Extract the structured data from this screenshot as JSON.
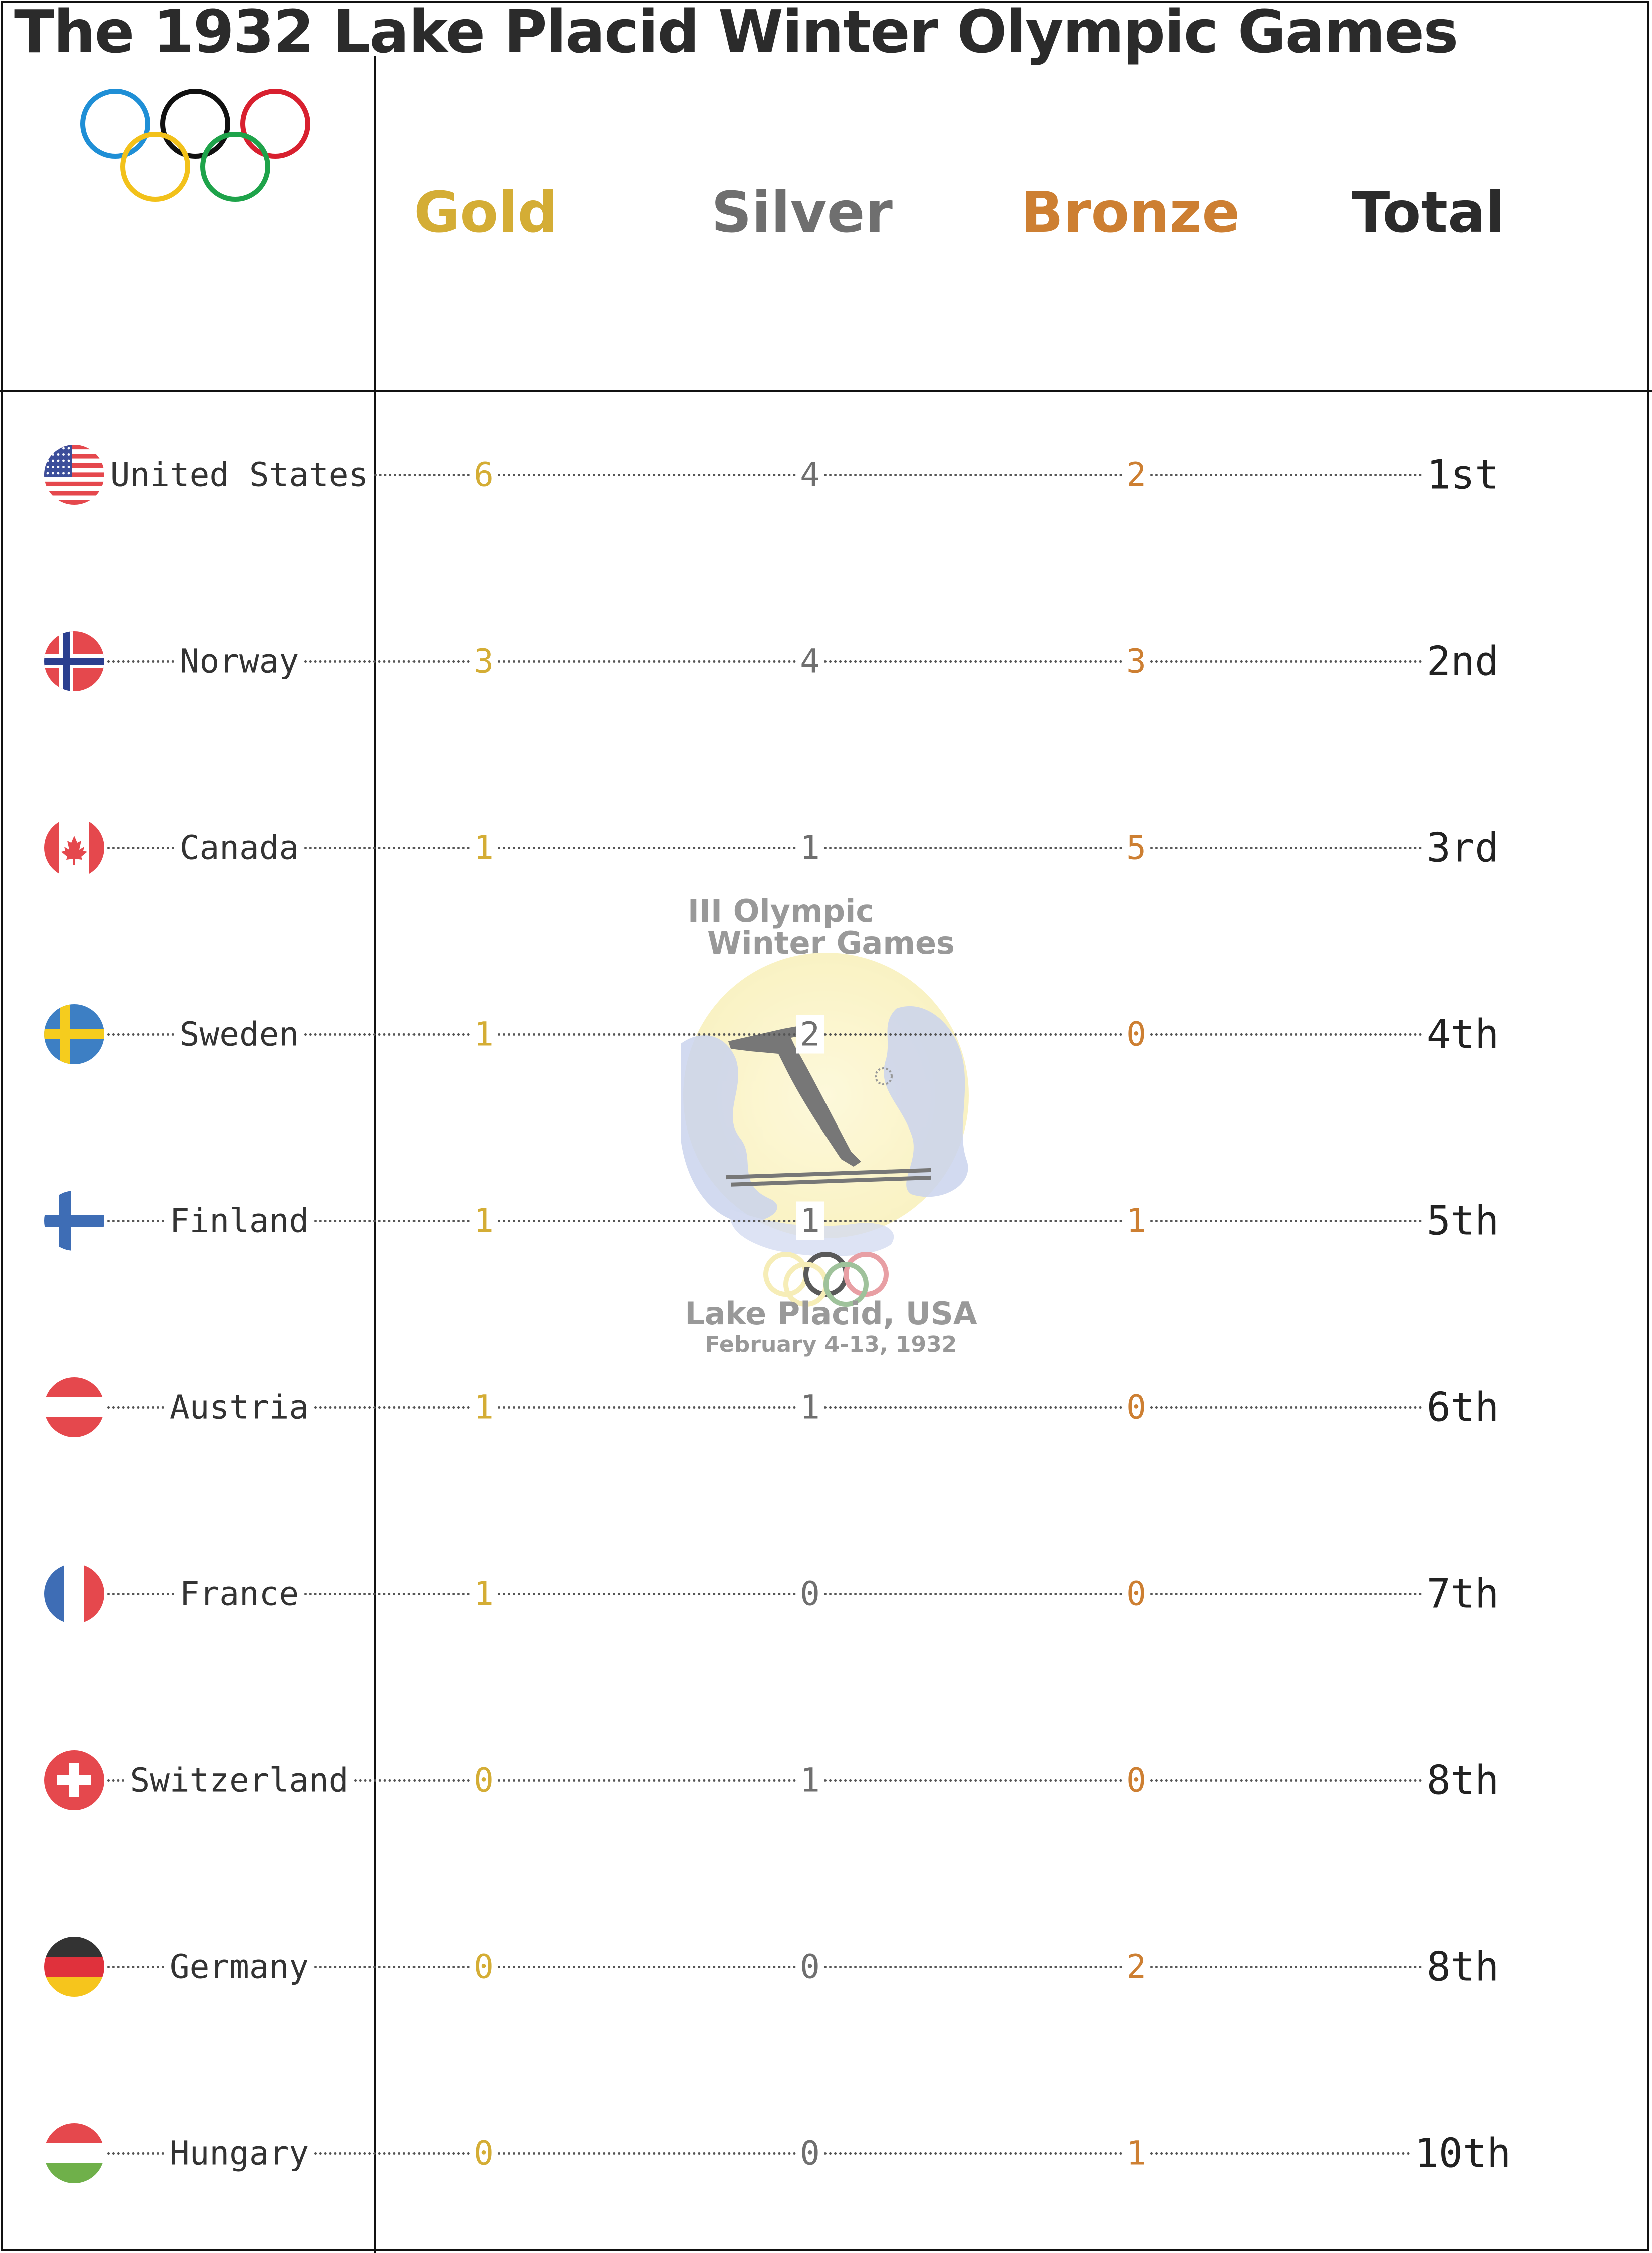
{
  "title": "The 1932 Lake Placid Winter Olympic Games",
  "columns": {
    "gold": "Gold",
    "silver": "Silver",
    "bronze": "Bronze",
    "total": "Total"
  },
  "colors": {
    "gold": "#d4ad35",
    "silver": "#6f6f6f",
    "bronze": "#cd7f32",
    "total": "#2b2b2b",
    "text": "#333333"
  },
  "logo_text": {
    "line1": "III Olympic",
    "line2": "Winter Games",
    "place": "Lake Placid, USA",
    "dates": "February 4-13, 1932"
  },
  "chart_data": {
    "type": "table",
    "title": "The 1932 Lake Placid Winter Olympic Games",
    "columns": [
      "Gold",
      "Silver",
      "Bronze",
      "Total"
    ],
    "rows": [
      {
        "country": "United States",
        "flag": "usa-flag",
        "gold": 6,
        "silver": 4,
        "bronze": 2,
        "rank": "1st"
      },
      {
        "country": "Norway",
        "flag": "norway-flag",
        "gold": 3,
        "silver": 4,
        "bronze": 3,
        "rank": "2nd"
      },
      {
        "country": "Canada",
        "flag": "canada-flag",
        "gold": 1,
        "silver": 1,
        "bronze": 5,
        "rank": "3rd"
      },
      {
        "country": "Sweden",
        "flag": "sweden-flag",
        "gold": 1,
        "silver": 2,
        "bronze": 0,
        "rank": "4th"
      },
      {
        "country": "Finland",
        "flag": "finland-flag",
        "gold": 1,
        "silver": 1,
        "bronze": 1,
        "rank": "5th"
      },
      {
        "country": "Austria",
        "flag": "austria-flag",
        "gold": 1,
        "silver": 1,
        "bronze": 0,
        "rank": "6th"
      },
      {
        "country": "France",
        "flag": "france-flag",
        "gold": 1,
        "silver": 0,
        "bronze": 0,
        "rank": "7th"
      },
      {
        "country": "Switzerland",
        "flag": "switzerland-flag",
        "gold": 0,
        "silver": 1,
        "bronze": 0,
        "rank": "8th"
      },
      {
        "country": "Germany",
        "flag": "germany-flag",
        "gold": 0,
        "silver": 0,
        "bronze": 2,
        "rank": "8th"
      },
      {
        "country": "Hungary",
        "flag": "hungary-flag",
        "gold": 0,
        "silver": 0,
        "bronze": 1,
        "rank": "10th"
      }
    ]
  }
}
